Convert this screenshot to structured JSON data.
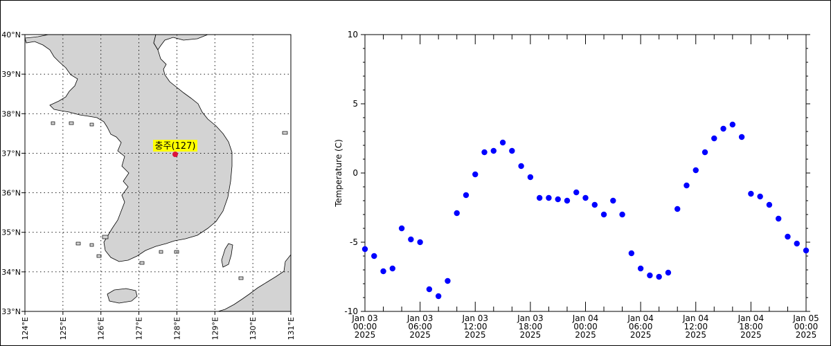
{
  "map": {
    "station_label": "충주(127)",
    "lat_labels": [
      "33°N",
      "34°N",
      "35°N",
      "36°N",
      "37°N",
      "38°N",
      "39°N",
      "40°N"
    ],
    "lon_labels": [
      "124°E",
      "125°E",
      "126°E",
      "127°E",
      "128°E",
      "129°E",
      "130°E",
      "131°E"
    ],
    "colors": {
      "land": "#d3d3d3",
      "marker": "#dc143c",
      "label_bg": "#ffff00"
    }
  },
  "chart_data": {
    "type": "scatter",
    "ylabel": "Temperature (C)",
    "ylim": [
      -10,
      10
    ],
    "yticks": [
      "-10",
      "-5",
      "0",
      "5",
      "10"
    ],
    "xlim": [
      "2025-01-03 00:00",
      "2025-01-05 00:00"
    ],
    "xticks": [
      [
        "Jan 03",
        "00:00",
        "2025"
      ],
      [
        "Jan 03",
        "06:00",
        "2025"
      ],
      [
        "Jan 03",
        "12:00",
        "2025"
      ],
      [
        "Jan 03",
        "18:00",
        "2025"
      ],
      [
        "Jan 04",
        "00:00",
        "2025"
      ],
      [
        "Jan 04",
        "06:00",
        "2025"
      ],
      [
        "Jan 04",
        "12:00",
        "2025"
      ],
      [
        "Jan 04",
        "18:00",
        "2025"
      ],
      [
        "Jan 05",
        "00:00",
        "2025"
      ]
    ],
    "marker_color": "#0000ff",
    "points": [
      [
        "2025-01-03 00:00",
        -5.5
      ],
      [
        "2025-01-03 01:00",
        -6.0
      ],
      [
        "2025-01-03 02:00",
        -7.1
      ],
      [
        "2025-01-03 03:00",
        -6.9
      ],
      [
        "2025-01-03 04:00",
        -4.0
      ],
      [
        "2025-01-03 05:00",
        -4.8
      ],
      [
        "2025-01-03 06:00",
        -5.0
      ],
      [
        "2025-01-03 07:00",
        -8.4
      ],
      [
        "2025-01-03 08:00",
        -8.9
      ],
      [
        "2025-01-03 09:00",
        -7.8
      ],
      [
        "2025-01-03 10:00",
        -2.9
      ],
      [
        "2025-01-03 11:00",
        -1.6
      ],
      [
        "2025-01-03 12:00",
        -0.1
      ],
      [
        "2025-01-03 13:00",
        1.5
      ],
      [
        "2025-01-03 14:00",
        1.6
      ],
      [
        "2025-01-03 15:00",
        2.2
      ],
      [
        "2025-01-03 16:00",
        1.6
      ],
      [
        "2025-01-03 17:00",
        0.5
      ],
      [
        "2025-01-03 18:00",
        -0.3
      ],
      [
        "2025-01-03 19:00",
        -1.8
      ],
      [
        "2025-01-03 20:00",
        -1.8
      ],
      [
        "2025-01-03 21:00",
        -1.9
      ],
      [
        "2025-01-03 22:00",
        -2.0
      ],
      [
        "2025-01-03 23:00",
        -1.4
      ],
      [
        "2025-01-04 00:00",
        -1.8
      ],
      [
        "2025-01-04 01:00",
        -2.3
      ],
      [
        "2025-01-04 02:00",
        -3.0
      ],
      [
        "2025-01-04 03:00",
        -2.0
      ],
      [
        "2025-01-04 04:00",
        -3.0
      ],
      [
        "2025-01-04 05:00",
        -5.8
      ],
      [
        "2025-01-04 06:00",
        -6.9
      ],
      [
        "2025-01-04 07:00",
        -7.4
      ],
      [
        "2025-01-04 08:00",
        -7.5
      ],
      [
        "2025-01-04 09:00",
        -7.2
      ],
      [
        "2025-01-04 10:00",
        -2.6
      ],
      [
        "2025-01-04 11:00",
        -0.9
      ],
      [
        "2025-01-04 12:00",
        0.2
      ],
      [
        "2025-01-04 13:00",
        1.5
      ],
      [
        "2025-01-04 14:00",
        2.5
      ],
      [
        "2025-01-04 15:00",
        3.2
      ],
      [
        "2025-01-04 16:00",
        3.5
      ],
      [
        "2025-01-04 17:00",
        2.6
      ],
      [
        "2025-01-04 18:00",
        -1.5
      ],
      [
        "2025-01-04 19:00",
        -1.7
      ],
      [
        "2025-01-04 20:00",
        -2.3
      ],
      [
        "2025-01-04 21:00",
        -3.3
      ],
      [
        "2025-01-04 22:00",
        -4.6
      ],
      [
        "2025-01-04 23:00",
        -5.1
      ],
      [
        "2025-01-05 00:00",
        -5.6
      ]
    ]
  }
}
